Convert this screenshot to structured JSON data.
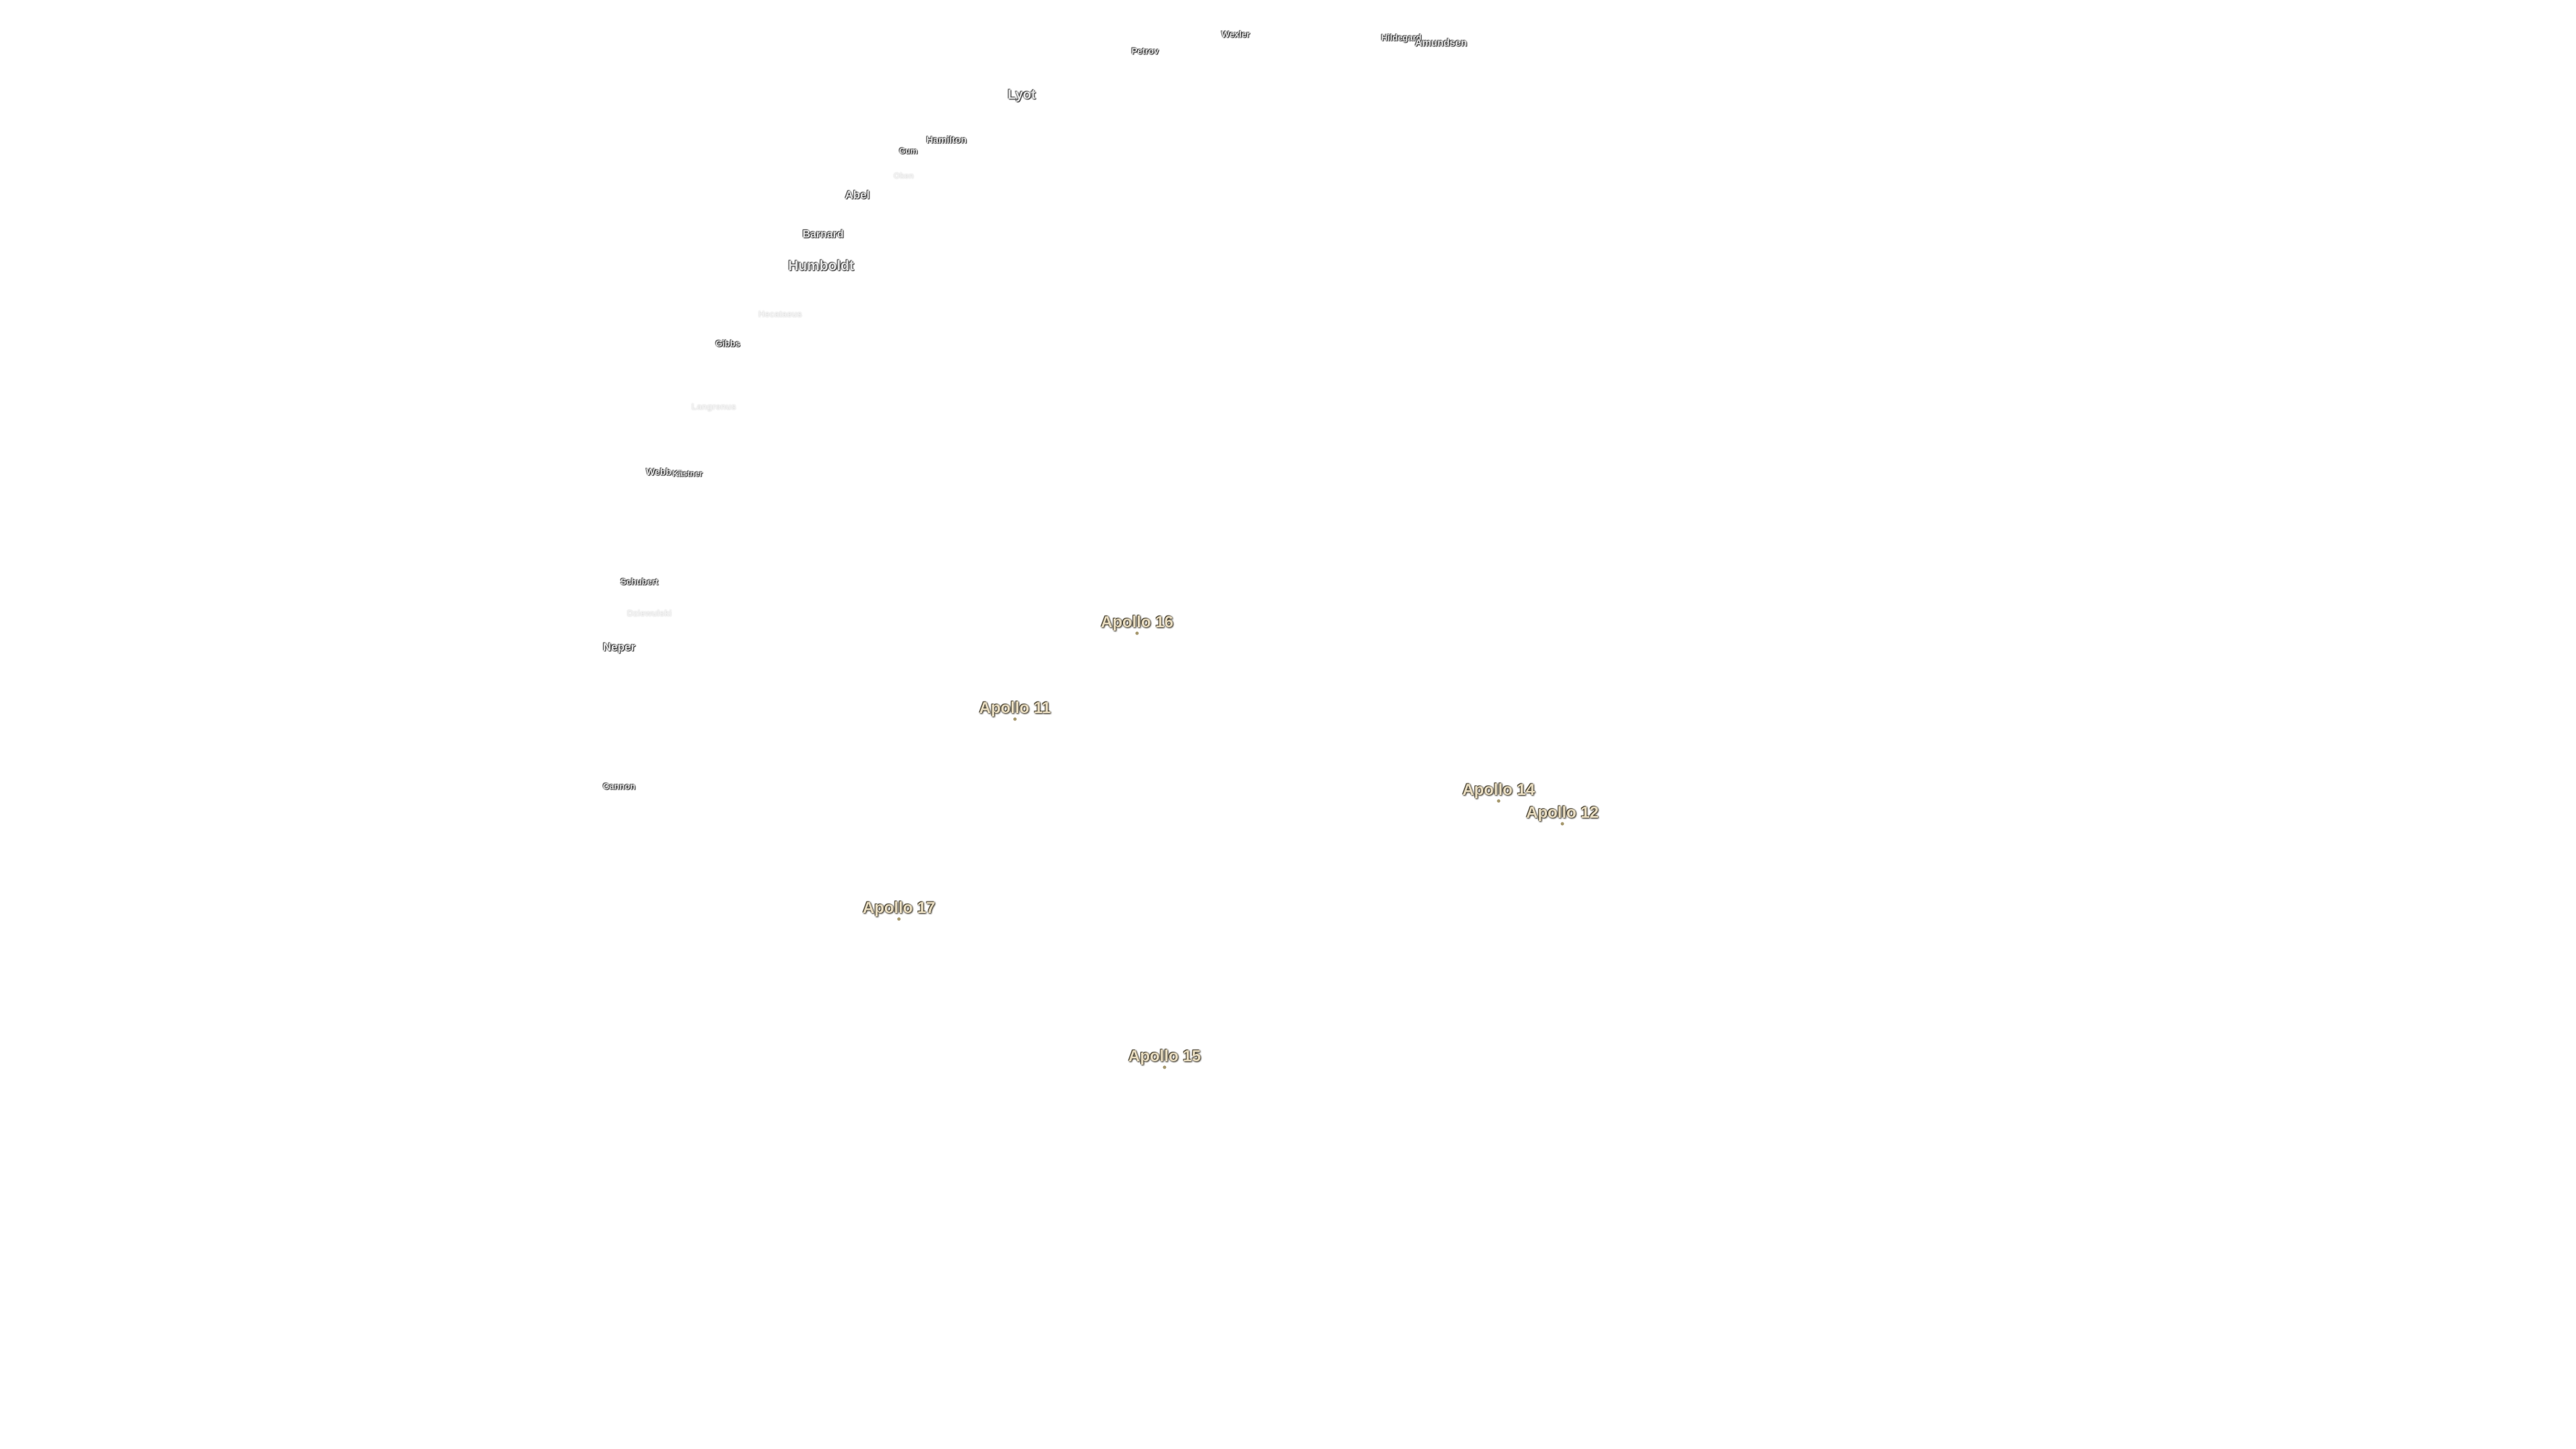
{
  "craters": [
    {
      "name": "Wexler"
    },
    {
      "name": "Petrov"
    },
    {
      "name": "Hildegard"
    },
    {
      "name": "Amundsen"
    },
    {
      "name": "Lyot"
    },
    {
      "name": "Hamilton"
    },
    {
      "name": "Gum"
    },
    {
      "name": "Oken"
    },
    {
      "name": "Abel"
    },
    {
      "name": "Barnard"
    },
    {
      "name": "Humboldt"
    },
    {
      "name": "Hecataeus"
    },
    {
      "name": "Gibbs"
    },
    {
      "name": "Langrenus"
    },
    {
      "name": "Webb"
    },
    {
      "name": "Kästner"
    },
    {
      "name": "Schubert"
    },
    {
      "name": "Dziewulski"
    },
    {
      "name": "Neper"
    },
    {
      "name": "Cannon"
    }
  ],
  "landing_sites": [
    {
      "name": "Apollo 16"
    },
    {
      "name": "Apollo 11"
    },
    {
      "name": "Apollo 14"
    },
    {
      "name": "Apollo 12"
    },
    {
      "name": "Apollo 17"
    },
    {
      "name": "Apollo 15"
    }
  ]
}
